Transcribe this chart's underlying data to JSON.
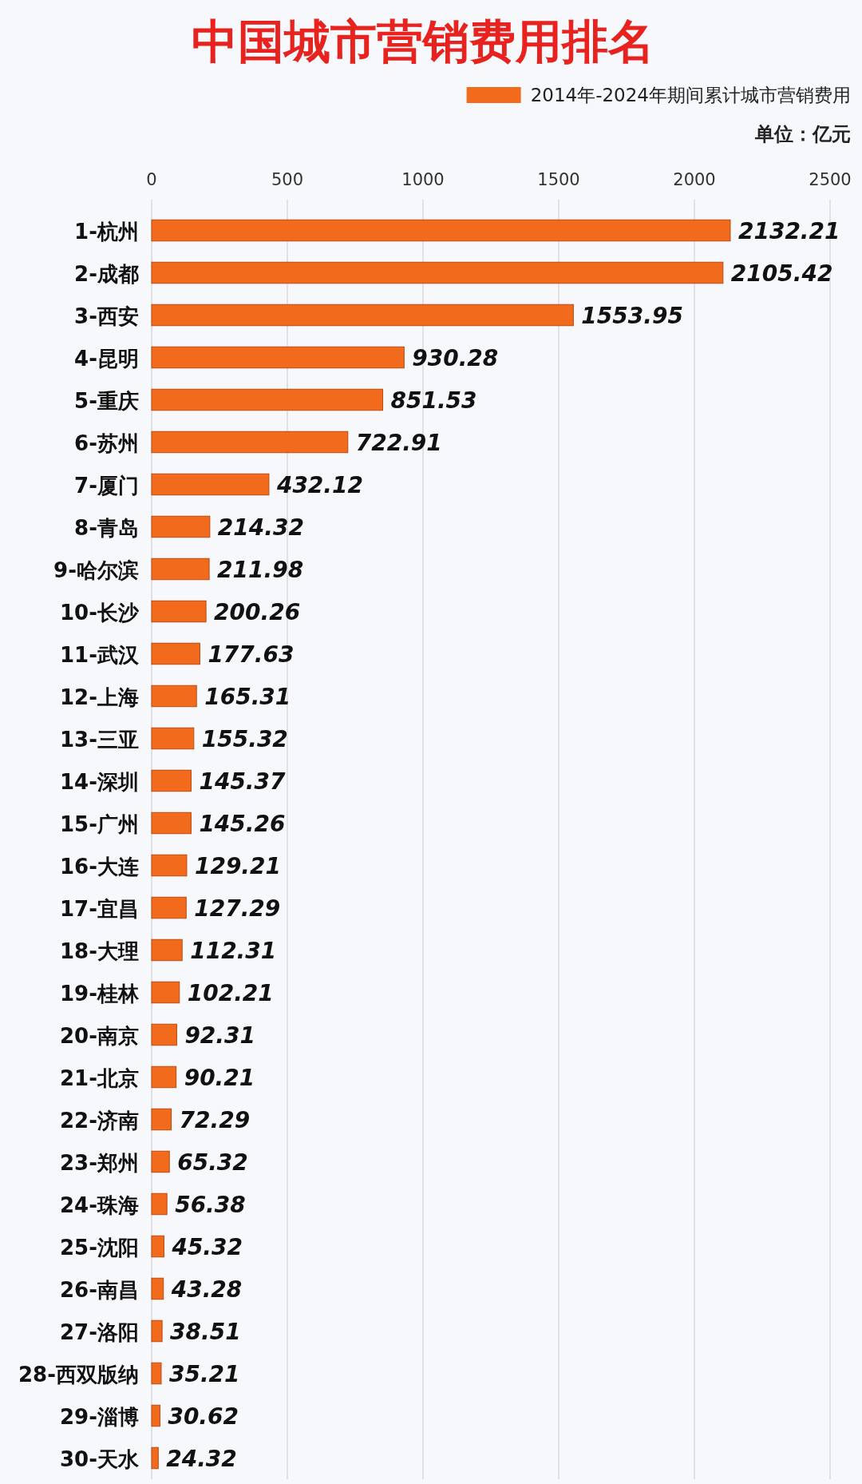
{
  "chart_data": {
    "type": "bar",
    "orientation": "horizontal",
    "title": "中国城市营销费用排名",
    "categories": [
      "1-杭州",
      "2-成都",
      "3-西安",
      "4-昆明",
      "5-重庆",
      "6-苏州",
      "7-厦门",
      "8-青岛",
      "9-哈尔滨",
      "10-长沙",
      "11-武汉",
      "12-上海",
      "13-三亚",
      "14-深圳",
      "15-广州",
      "16-大连",
      "17-宜昌",
      "18-大理",
      "19-桂林",
      "20-南京",
      "21-北京",
      "22-济南",
      "23-郑州",
      "24-珠海",
      "25-沈阳",
      "26-南昌",
      "27-洛阳",
      "28-西双版纳",
      "29-淄博",
      "30-天水"
    ],
    "series": [
      {
        "name": "2014年-2024年期间累计城市营销费用",
        "color": "#f26a1b",
        "values": [
          2132.21,
          2105.42,
          1553.95,
          930.28,
          851.53,
          722.91,
          432.12,
          214.32,
          211.98,
          200.26,
          177.63,
          165.31,
          155.32,
          145.37,
          145.26,
          129.21,
          127.29,
          112.31,
          102.21,
          92.31,
          90.21,
          72.29,
          65.32,
          56.38,
          45.32,
          43.28,
          38.51,
          35.21,
          30.62,
          24.32
        ]
      }
    ],
    "xlim": [
      0,
      2500
    ],
    "xticks": [
      0,
      500,
      1000,
      1500,
      2000,
      2500
    ],
    "grid": "x",
    "legend": "top right",
    "data_labels": true,
    "annotations": [
      "单位：亿元"
    ]
  }
}
